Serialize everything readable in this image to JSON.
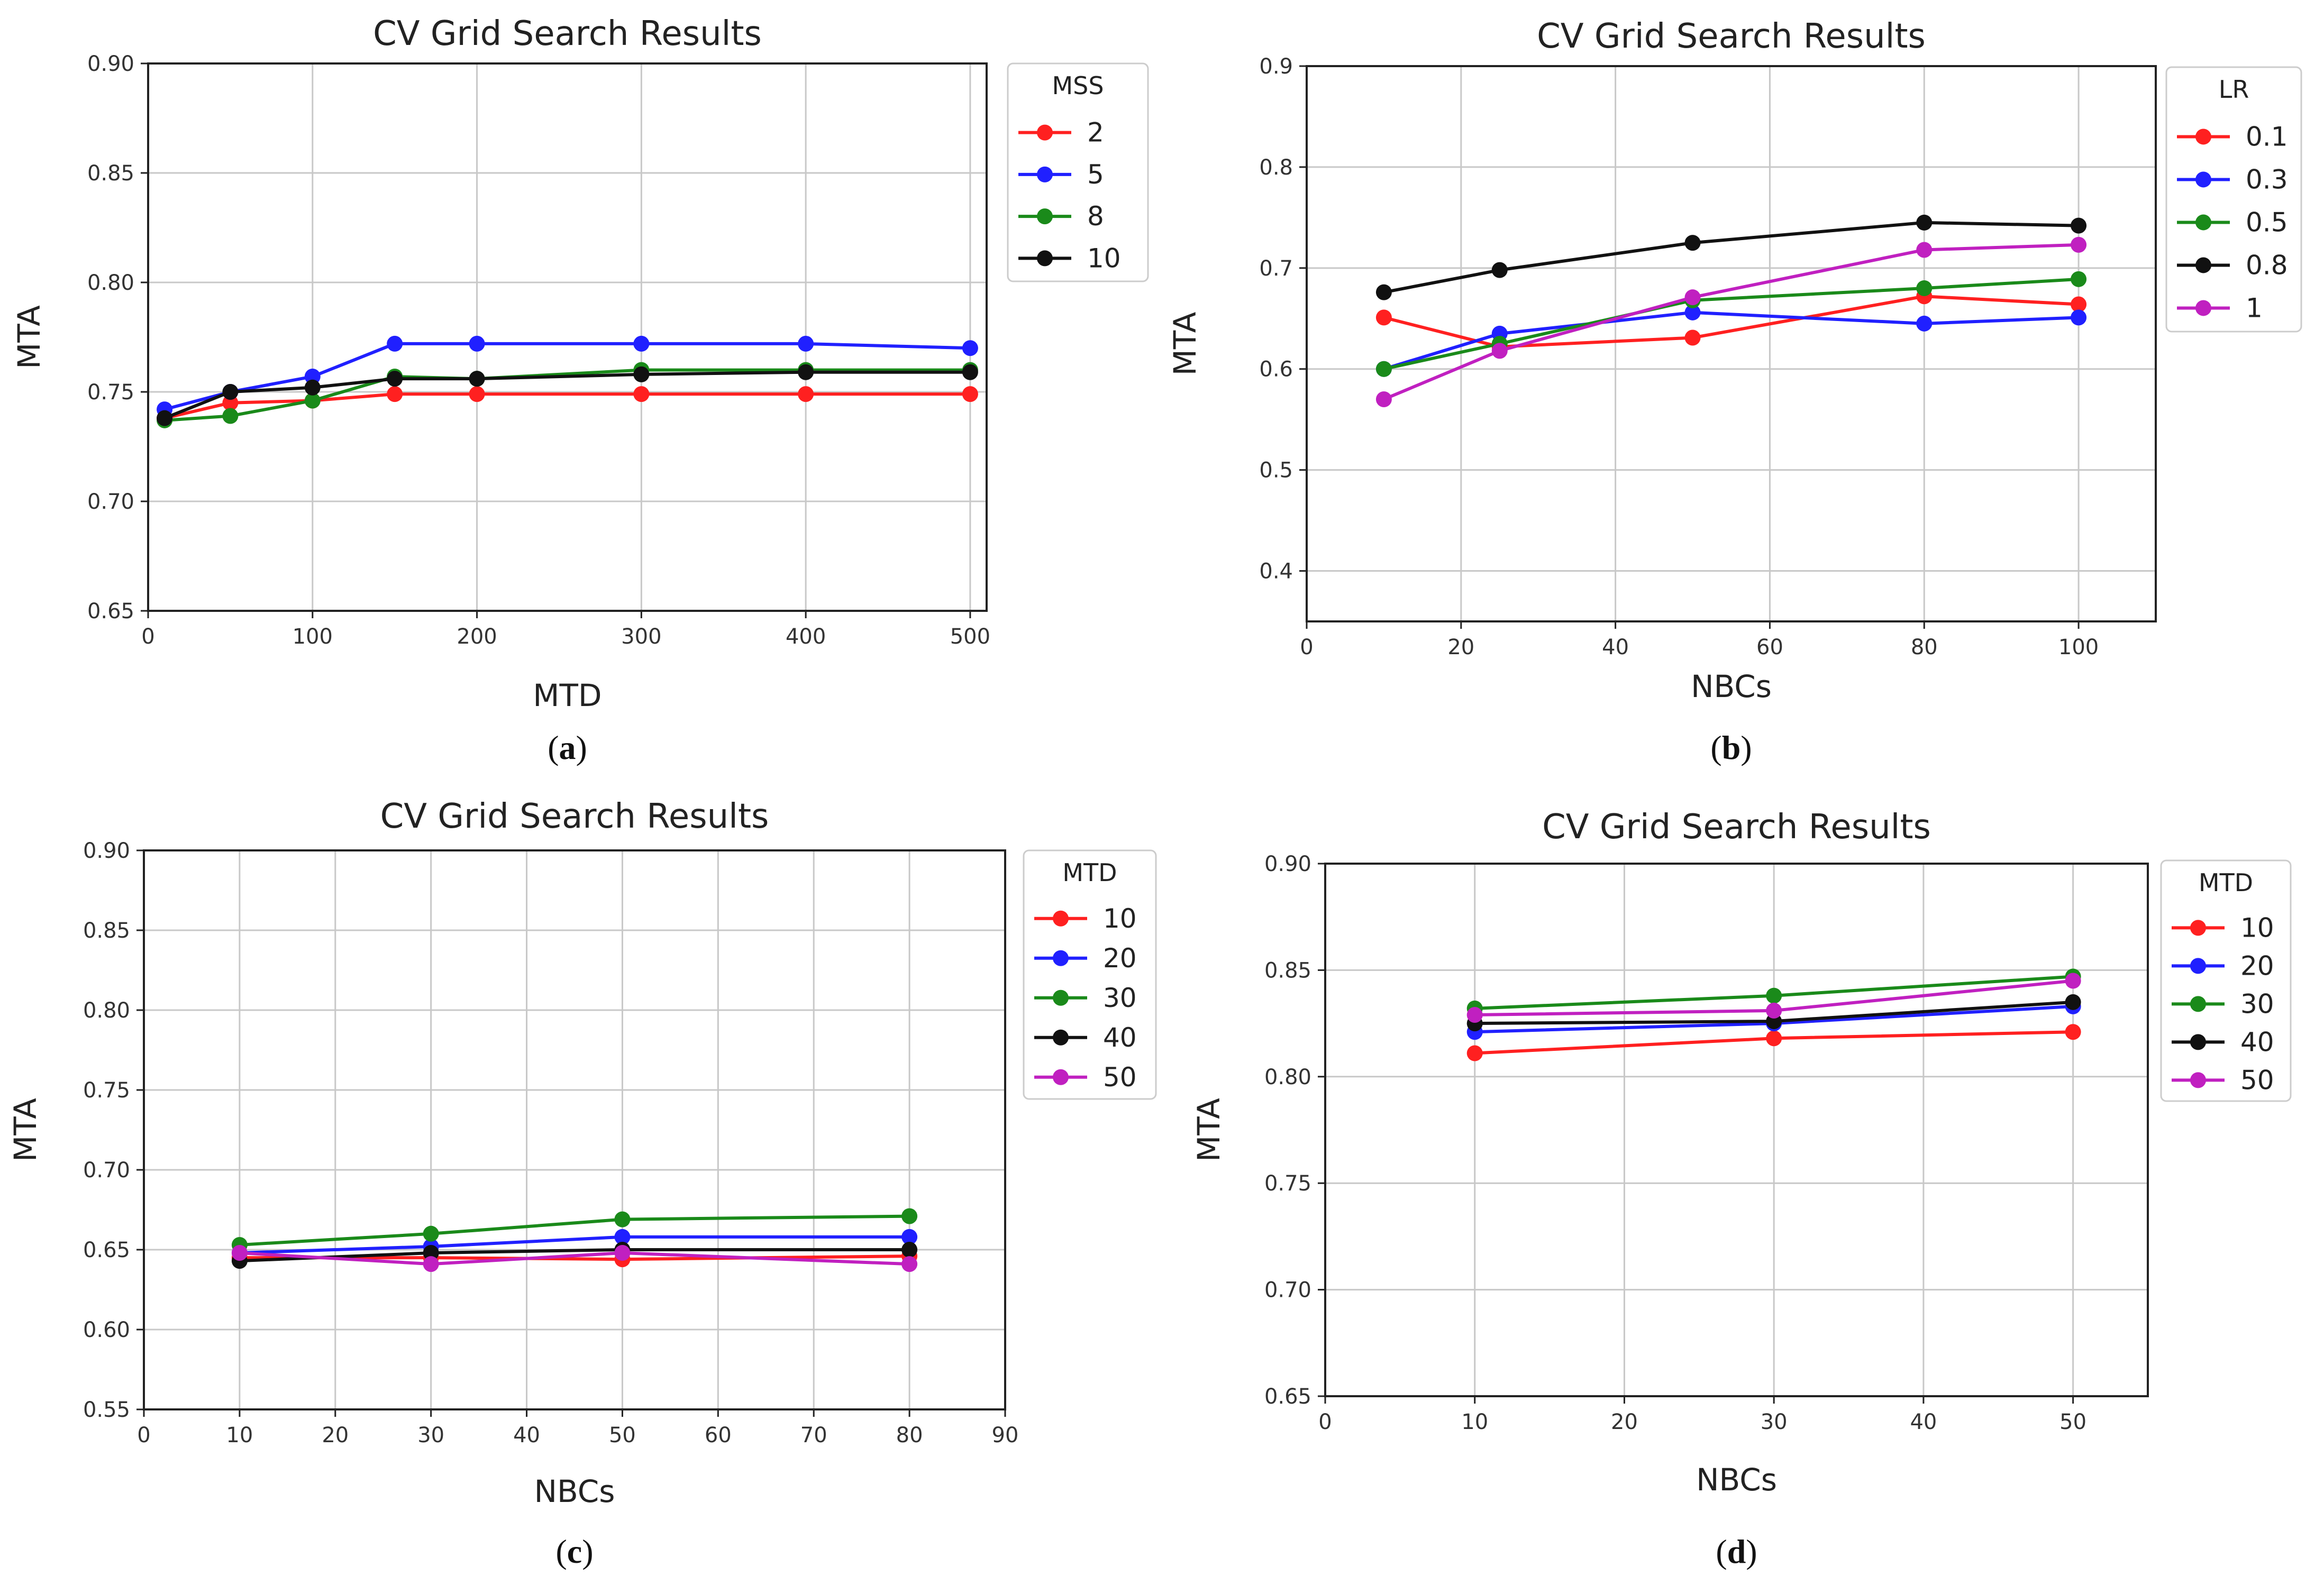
{
  "chart_data": [
    {
      "type": "line",
      "title": "CV Grid Search Results",
      "xlabel": "MTD",
      "ylabel": "MTA",
      "panel_label": "a",
      "xlim": [
        0,
        510
      ],
      "ylim": [
        0.65,
        0.9
      ],
      "xticks": [
        "0",
        "100",
        "200",
        "300",
        "400",
        "500"
      ],
      "xtick_values": [
        0,
        100,
        200,
        300,
        400,
        500
      ],
      "yticks": [
        "0.65",
        "0.70",
        "0.75",
        "0.80",
        "0.85",
        "0.90"
      ],
      "ytick_values": [
        0.65,
        0.7,
        0.75,
        0.8,
        0.85,
        0.9
      ],
      "grid": true,
      "legend_title": "MSS",
      "legend_position": "outside-right",
      "x": [
        10,
        50,
        100,
        150,
        200,
        300,
        400,
        500
      ],
      "series": [
        {
          "name": "2",
          "color": "#ff2020",
          "values": [
            0.738,
            0.745,
            0.746,
            0.749,
            0.749,
            0.749,
            0.749,
            0.749
          ]
        },
        {
          "name": "5",
          "color": "#2020ff",
          "values": [
            0.742,
            0.75,
            0.757,
            0.772,
            0.772,
            0.772,
            0.772,
            0.77
          ]
        },
        {
          "name": "8",
          "color": "#1a8a1a",
          "values": [
            0.737,
            0.739,
            0.746,
            0.757,
            0.756,
            0.76,
            0.76,
            0.76
          ]
        },
        {
          "name": "10",
          "color": "#111111",
          "values": [
            0.738,
            0.75,
            0.752,
            0.756,
            0.756,
            0.758,
            0.759,
            0.759
          ]
        }
      ]
    },
    {
      "type": "line",
      "title": "CV Grid Search Results",
      "xlabel": "NBCs",
      "ylabel": "MTA",
      "panel_label": "b",
      "xlim": [
        0,
        110
      ],
      "ylim": [
        0.35,
        0.9
      ],
      "xticks": [
        "0",
        "20",
        "40",
        "60",
        "80",
        "100"
      ],
      "xtick_values": [
        0,
        20,
        40,
        60,
        80,
        100
      ],
      "yticks": [
        "0.4",
        "0.5",
        "0.6",
        "0.7",
        "0.8",
        "0.9"
      ],
      "ytick_values": [
        0.4,
        0.5,
        0.6,
        0.7,
        0.8,
        0.9
      ],
      "grid": true,
      "legend_title": "LR",
      "legend_position": "outside-right",
      "x": [
        10,
        25,
        50,
        80,
        100
      ],
      "series": [
        {
          "name": "0.1",
          "color": "#ff2020",
          "values": [
            0.651,
            0.622,
            0.631,
            0.672,
            0.664
          ]
        },
        {
          "name": "0.3",
          "color": "#2020ff",
          "values": [
            0.6,
            0.635,
            0.656,
            0.645,
            0.651
          ]
        },
        {
          "name": "0.5",
          "color": "#1a8a1a",
          "values": [
            0.6,
            0.625,
            0.668,
            0.68,
            0.689
          ]
        },
        {
          "name": "0.8",
          "color": "#111111",
          "values": [
            0.676,
            0.698,
            0.725,
            0.745,
            0.742
          ]
        },
        {
          "name": "1",
          "color": "#c020c0",
          "values": [
            0.57,
            0.618,
            0.671,
            0.718,
            0.723
          ]
        }
      ]
    },
    {
      "type": "line",
      "title": "CV Grid Search Results",
      "xlabel": "NBCs",
      "ylabel": "MTA",
      "panel_label": "c",
      "xlim": [
        0,
        90
      ],
      "ylim": [
        0.55,
        0.9
      ],
      "xticks": [
        "0",
        "10",
        "20",
        "30",
        "40",
        "50",
        "60",
        "70",
        "80",
        "90"
      ],
      "xtick_values": [
        0,
        10,
        20,
        30,
        40,
        50,
        60,
        70,
        80,
        90
      ],
      "yticks": [
        "0.55",
        "0.60",
        "0.65",
        "0.70",
        "0.75",
        "0.80",
        "0.85",
        "0.90"
      ],
      "ytick_values": [
        0.55,
        0.6,
        0.65,
        0.7,
        0.75,
        0.8,
        0.85,
        0.9
      ],
      "grid": true,
      "legend_title": "MTD",
      "legend_position": "outside-right",
      "x": [
        10,
        30,
        50,
        80
      ],
      "series": [
        {
          "name": "10",
          "color": "#ff2020",
          "values": [
            0.645,
            0.645,
            0.644,
            0.646
          ]
        },
        {
          "name": "20",
          "color": "#2020ff",
          "values": [
            0.648,
            0.652,
            0.658,
            0.658
          ]
        },
        {
          "name": "30",
          "color": "#1a8a1a",
          "values": [
            0.653,
            0.66,
            0.669,
            0.671
          ]
        },
        {
          "name": "40",
          "color": "#111111",
          "values": [
            0.643,
            0.648,
            0.65,
            0.65
          ]
        },
        {
          "name": "50",
          "color": "#c020c0",
          "values": [
            0.648,
            0.641,
            0.648,
            0.641
          ]
        }
      ]
    },
    {
      "type": "line",
      "title": "CV Grid Search Results",
      "xlabel": "NBCs",
      "ylabel": "MTA",
      "panel_label": "d",
      "xlim": [
        0,
        55
      ],
      "ylim": [
        0.65,
        0.9
      ],
      "xticks": [
        "0",
        "10",
        "20",
        "30",
        "40",
        "50"
      ],
      "xtick_values": [
        0,
        10,
        20,
        30,
        40,
        50
      ],
      "yticks": [
        "0.65",
        "0.70",
        "0.75",
        "0.80",
        "0.85",
        "0.90"
      ],
      "ytick_values": [
        0.65,
        0.7,
        0.75,
        0.8,
        0.85,
        0.9
      ],
      "grid": true,
      "legend_title": "MTD",
      "legend_position": "outside-right",
      "x": [
        10,
        30,
        50
      ],
      "series": [
        {
          "name": "10",
          "color": "#ff2020",
          "values": [
            0.811,
            0.818,
            0.821
          ]
        },
        {
          "name": "20",
          "color": "#2020ff",
          "values": [
            0.821,
            0.825,
            0.833
          ]
        },
        {
          "name": "30",
          "color": "#1a8a1a",
          "values": [
            0.832,
            0.838,
            0.847
          ]
        },
        {
          "name": "40",
          "color": "#111111",
          "values": [
            0.825,
            0.826,
            0.835
          ]
        },
        {
          "name": "50",
          "color": "#c020c0",
          "values": [
            0.829,
            0.831,
            0.845
          ]
        }
      ]
    }
  ]
}
